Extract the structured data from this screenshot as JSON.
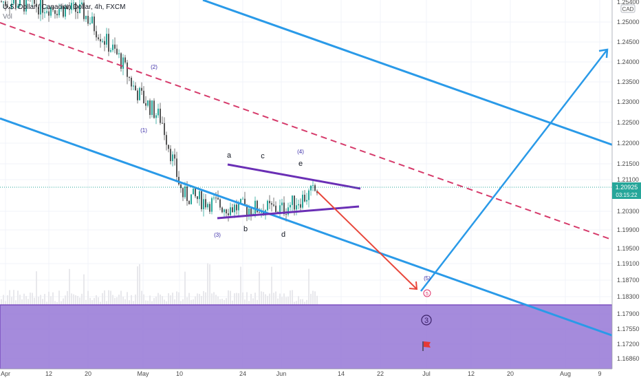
{
  "header": {
    "symbol_title": "U.S. Dollar / Canadian Dollar, 4h, FXCM",
    "volume_label": "Vol",
    "currency_badge": "CAD"
  },
  "price_scale": {
    "ticks": [
      "1.25000",
      "1.24500",
      "1.24000",
      "1.23500",
      "1.23000",
      "1.22500",
      "1.22000",
      "1.21500",
      "1.21100",
      "1.20300",
      "1.19900",
      "1.19500",
      "1.19100",
      "1.18700",
      "1.18300",
      "1.17900",
      "1.17550",
      "1.17200",
      "1.16860"
    ],
    "current_price": "1.20925",
    "countdown": "03:15:22",
    "top_partial_label": "1.25400"
  },
  "time_scale": {
    "ticks": [
      "Apr",
      "12",
      "20",
      "May",
      "10",
      "24",
      "Jun",
      "14",
      "22",
      "Jul",
      "12",
      "20",
      "Aug",
      "9"
    ]
  },
  "annotations": {
    "wave_labels": [
      "(1)",
      "(2)",
      "(3)",
      "(4)",
      "(5)"
    ],
    "triangle_labels": [
      "a",
      "b",
      "c",
      "d",
      "e"
    ],
    "target_circle_label": "5",
    "big_circle_label": "3"
  },
  "colors": {
    "channel": "#2a9ae8",
    "dashed_midline": "#d63b6b",
    "triangle": "#6a2fb5",
    "arrow_down": "#e8463a",
    "candle_up": "#26a69a",
    "candle_down": "#555555",
    "zone_fill": "#9b7ed8",
    "zone_border": "#7b4fbf",
    "price_badge": "#26a69a",
    "flag": "#e53935"
  },
  "chart_data": {
    "type": "candlestick",
    "title": "U.S. Dollar / Canadian Dollar, 4h, FXCM",
    "x": [
      "Apr",
      "12",
      "20",
      "May",
      "10",
      "24",
      "Jun",
      "14",
      "22",
      "Jul",
      "12",
      "20",
      "Aug",
      "9"
    ],
    "ylim": [
      1.166,
      1.256
    ],
    "price_path": [
      {
        "date": "Apr",
        "price": 1.2545
      },
      {
        "date": "12",
        "price": 1.2535
      },
      {
        "date": "20",
        "price": 1.252
      },
      {
        "date": "May",
        "price": 1.2405
      },
      {
        "date": "May",
        "price": 1.2335
      },
      {
        "date": "May",
        "price": 1.226
      },
      {
        "date": "10",
        "price": 1.208
      },
      {
        "date": "24",
        "price": 1.205
      },
      {
        "date": "Jun",
        "price": 1.2045
      },
      {
        "date": "Jun",
        "price": 1.2092
      }
    ],
    "current_price": 1.20925,
    "overlays": [
      {
        "name": "descending channel upper",
        "points": [
          [
            "Apr",
            1.265
          ],
          [
            "Aug",
            1.222
          ]
        ]
      },
      {
        "name": "descending channel lower",
        "points": [
          [
            "Apr",
            1.227
          ],
          [
            "Aug",
            1.174
          ]
        ]
      },
      {
        "name": "channel midline (dashed)",
        "points": [
          [
            "Apr",
            1.253
          ],
          [
            "Aug",
            1.199
          ]
        ]
      },
      {
        "name": "triangle upper",
        "points": [
          [
            "24",
            1.2145
          ],
          [
            "Jun",
            1.2085
          ]
        ]
      },
      {
        "name": "triangle lower",
        "points": [
          [
            "24",
            1.2015
          ],
          [
            "Jun",
            1.2035
          ]
        ]
      },
      {
        "name": "projected drop",
        "points": [
          [
            "Jun",
            1.2085
          ],
          [
            "Jul",
            1.185
          ]
        ]
      },
      {
        "name": "projected rally",
        "points": [
          [
            "Jul",
            1.184
          ],
          [
            "Aug",
            1.2435
          ]
        ]
      }
    ],
    "grid": true,
    "volume_panel": "Vol"
  }
}
